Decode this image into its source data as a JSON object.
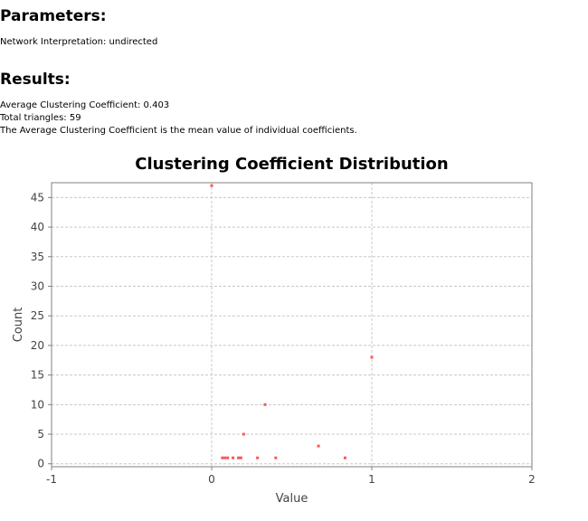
{
  "parameters": {
    "heading": "Parameters:",
    "network_interpretation": "Network Interpretation:  undirected"
  },
  "results": {
    "heading": "Results:",
    "avg_clustering": "Average Clustering Coefficient: 0.403",
    "total_triangles": "Total triangles: 59",
    "description": "The Average Clustering Coefficient is the mean value of individual coefficients."
  },
  "chart_data": {
    "type": "scatter",
    "title": "Clustering Coefficient Distribution",
    "xlabel": "Value",
    "ylabel": "Count",
    "xlim": [
      -1,
      2
    ],
    "ylim": [
      -0.5,
      47.5
    ],
    "xticks": [
      -1,
      0,
      1,
      2
    ],
    "yticks": [
      0,
      5,
      10,
      15,
      20,
      25,
      30,
      35,
      40,
      45
    ],
    "grid": true,
    "point_color": "#ff5555",
    "points": [
      {
        "x": 0,
        "y": 47
      },
      {
        "x": 1,
        "y": 18
      },
      {
        "x": 0.333,
        "y": 10
      },
      {
        "x": 0.2,
        "y": 5
      },
      {
        "x": 0.667,
        "y": 3
      },
      {
        "x": 0.067,
        "y": 1
      },
      {
        "x": 0.083,
        "y": 1
      },
      {
        "x": 0.1,
        "y": 1
      },
      {
        "x": 0.133,
        "y": 1
      },
      {
        "x": 0.167,
        "y": 1
      },
      {
        "x": 0.183,
        "y": 1
      },
      {
        "x": 0.286,
        "y": 1
      },
      {
        "x": 0.4,
        "y": 1
      },
      {
        "x": 0.833,
        "y": 1
      }
    ]
  }
}
